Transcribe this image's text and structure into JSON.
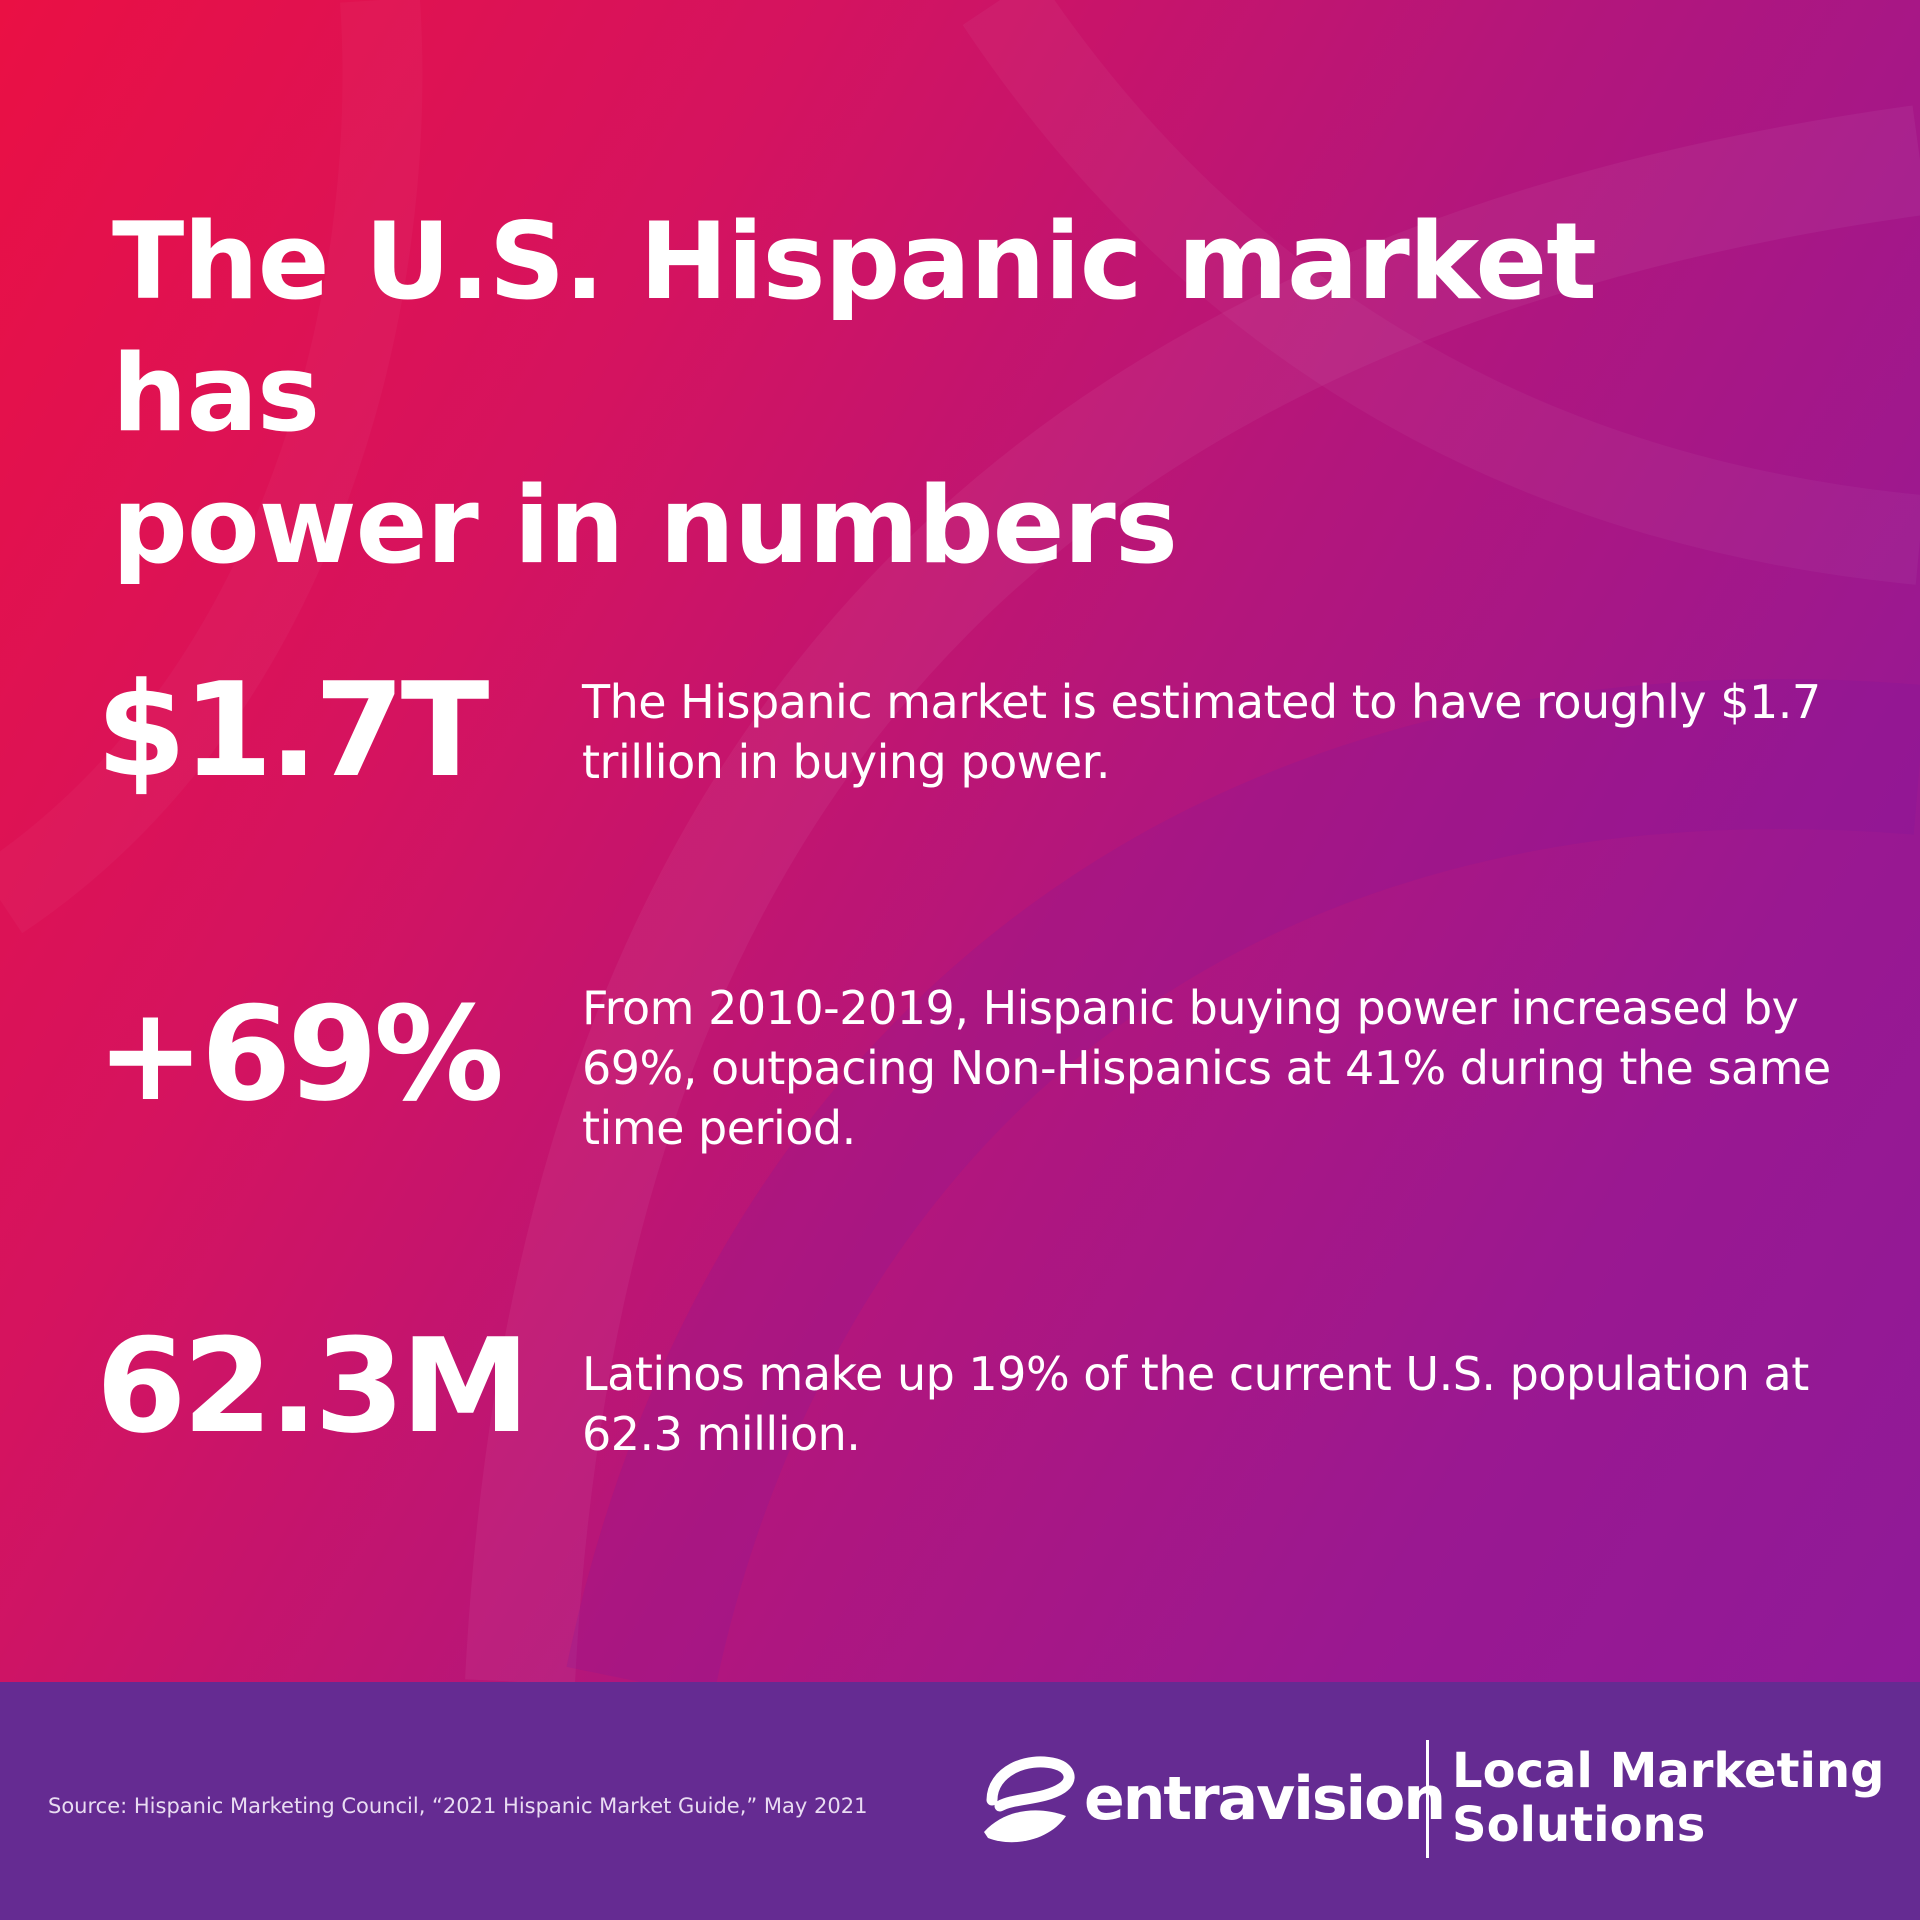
{
  "header": {
    "title_line1": "The U.S. Hispanic market has",
    "title_line2": "power in numbers"
  },
  "stats": [
    {
      "value": "$1.7T",
      "description": "The Hispanic market is estimated to have roughly $1.7 trillion in buying power."
    },
    {
      "value": "+69%",
      "description": "From 2010-2019, Hispanic buying power increased by 69%, outpacing Non-Hispanics at 41% during the same time period."
    },
    {
      "value": "62.3M",
      "description": "Latinos make up 19% of the current U.S. population at 62.3 million."
    }
  ],
  "footer": {
    "source": "Source: Hispanic Marketing Council, “2021 Hispanic Market Guide,” May 2021",
    "brand": "entravision",
    "tagline_line1": "Local Marketing",
    "tagline_line2": "Solutions"
  },
  "colors": {
    "gradient_start": "#ea1044",
    "gradient_end": "#8f1a98",
    "footer_bg": "#652b92",
    "text": "#ffffff"
  },
  "icons": {
    "logo": "entravision-swoosh-e-logo"
  }
}
